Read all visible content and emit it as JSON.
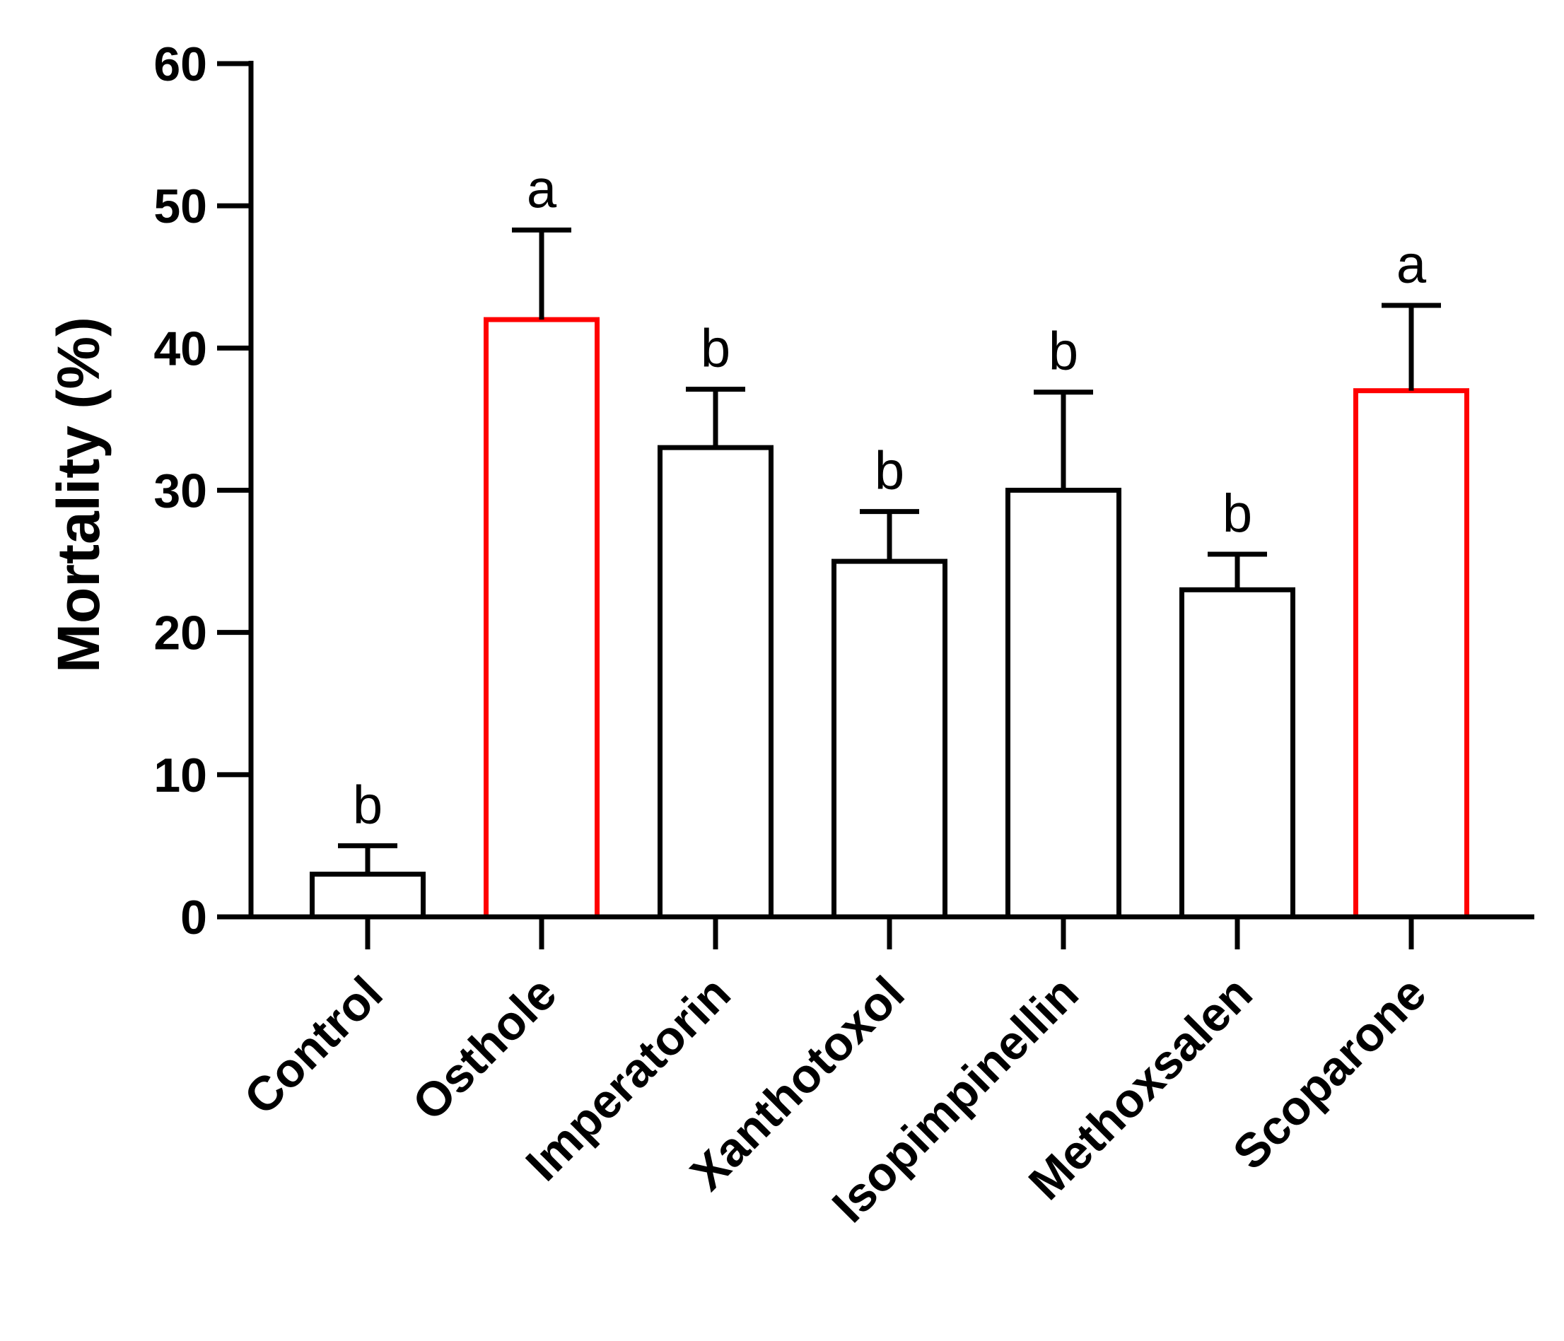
{
  "chart_data": {
    "type": "bar",
    "title": "",
    "xlabel": "",
    "ylabel": "Mortality (%)",
    "ylim": [
      0,
      60
    ],
    "yticks": [
      0,
      10,
      20,
      30,
      40,
      50,
      60
    ],
    "grid": false,
    "categories": [
      "Control",
      "Osthole",
      "Imperatorin",
      "Xanthotoxol",
      "Isopimpinellin",
      "Methoxsalen",
      "Scoparone"
    ],
    "values": [
      3,
      42,
      33,
      25,
      30,
      23,
      37
    ],
    "error_upper": [
      5,
      48.3,
      37.1,
      28.5,
      36.9,
      25.5,
      43
    ],
    "significance_letters": [
      "b",
      "a",
      "b",
      "b",
      "b",
      "b",
      "a"
    ],
    "bar_edge_colors": [
      "#000000",
      "#ff0000",
      "#000000",
      "#000000",
      "#000000",
      "#000000",
      "#ff0000"
    ],
    "bar_fill_color": "#ffffff"
  }
}
